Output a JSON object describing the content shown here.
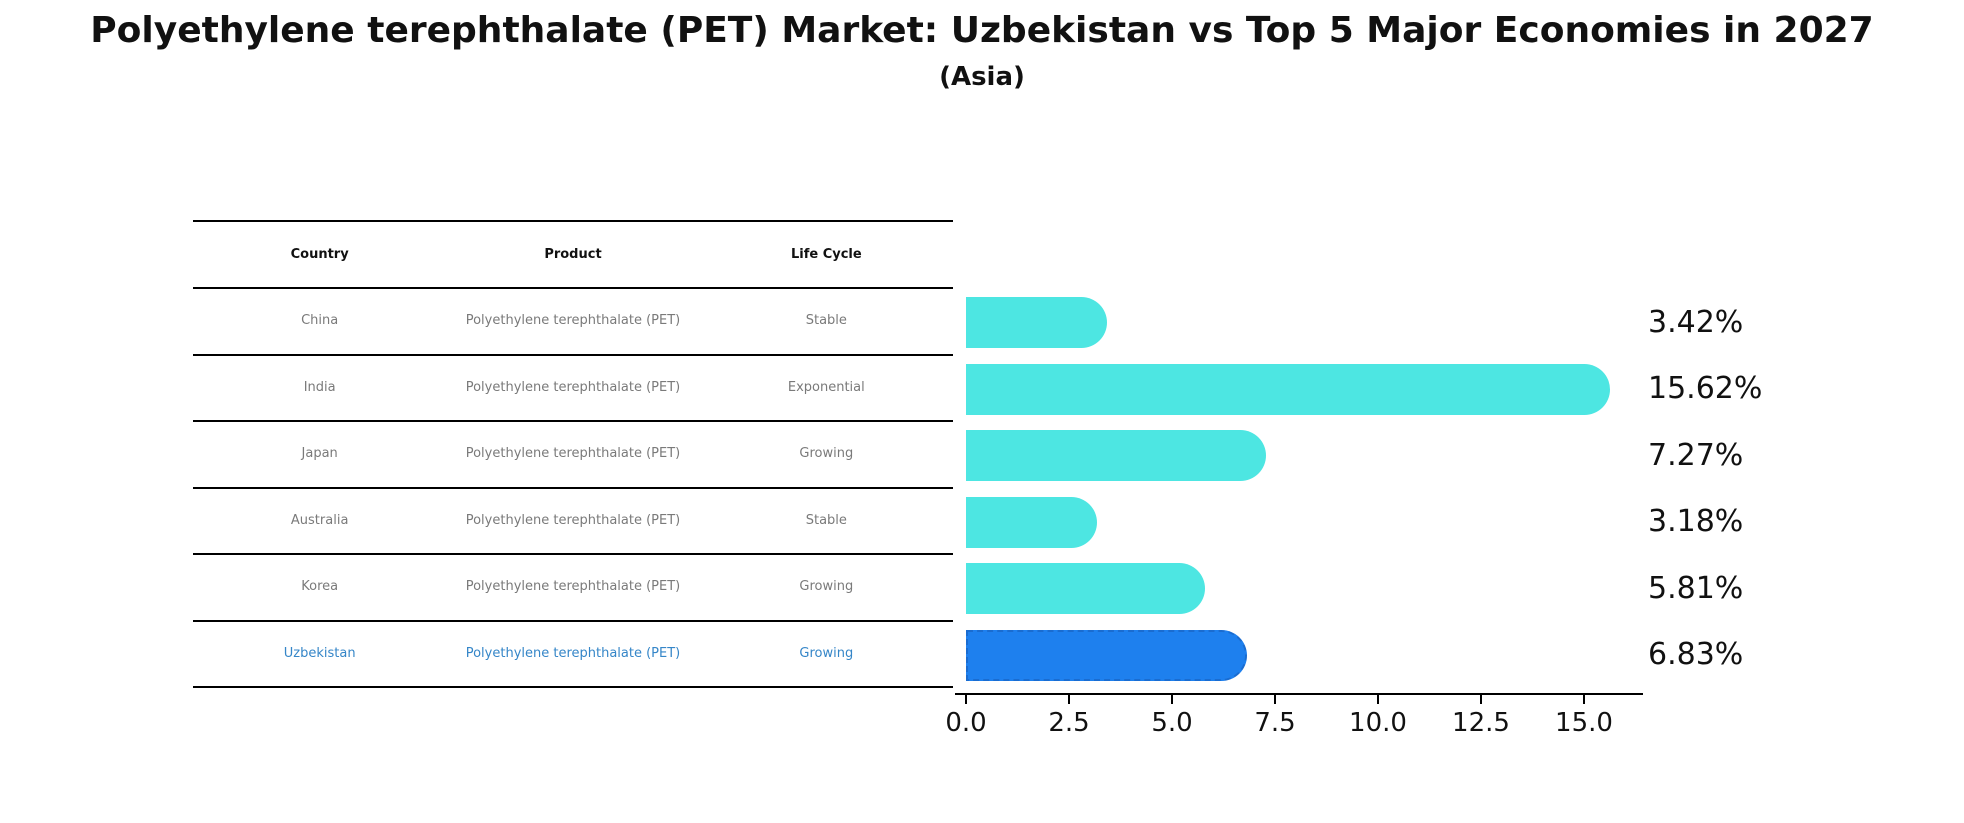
{
  "chart_data": {
    "type": "bar",
    "orientation": "horizontal",
    "title": "Polyethylene terephthalate (PET) Market: Uzbekistan vs Top 5 Major Economies in 2027",
    "subtitle": "(Asia)",
    "categories": [
      "China",
      "India",
      "Japan",
      "Australia",
      "Korea",
      "Uzbekistan"
    ],
    "values": [
      3.42,
      15.62,
      7.27,
      3.18,
      5.81,
      6.83
    ],
    "value_labels": [
      "3.42%",
      "15.62%",
      "7.27%",
      "3.18%",
      "5.81%",
      "6.83%"
    ],
    "highlight_index": 5,
    "xticks": [
      "0.0",
      "2.5",
      "5.0",
      "7.5",
      "10.0",
      "12.5",
      "15.0"
    ],
    "xlim": [
      0,
      16.4
    ],
    "grid": false,
    "legend": false,
    "table": {
      "columns": [
        "Country",
        "Product",
        "Life Cycle"
      ],
      "rows": [
        {
          "country": "China",
          "product": "Polyethylene terephthalate (PET)",
          "life_cycle": "Stable"
        },
        {
          "country": "India",
          "product": "Polyethylene terephthalate (PET)",
          "life_cycle": "Exponential"
        },
        {
          "country": "Japan",
          "product": "Polyethylene terephthalate (PET)",
          "life_cycle": "Growing"
        },
        {
          "country": "Australia",
          "product": "Polyethylene terephthalate (PET)",
          "life_cycle": "Stable"
        },
        {
          "country": "Korea",
          "product": "Polyethylene terephthalate (PET)",
          "life_cycle": "Growing"
        },
        {
          "country": "Uzbekistan",
          "product": "Polyethylene terephthalate (PET)",
          "life_cycle": "Growing"
        }
      ]
    },
    "colors": {
      "bar": "#4de6e2",
      "highlight_bar": "#1e80ee",
      "highlight_bar_border": "#1a6cd0",
      "table_text": "#7a7a7a",
      "highlight_text": "#3586c8",
      "text": "#111111",
      "axis": "#000000"
    }
  }
}
